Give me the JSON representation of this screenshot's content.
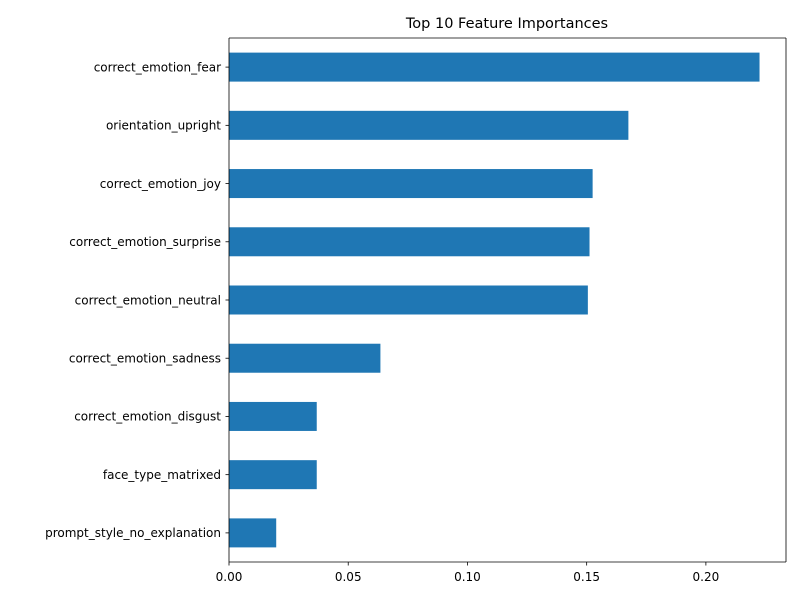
{
  "chart_data": {
    "type": "bar",
    "orientation": "horizontal",
    "title": "Top 10 Feature Importances",
    "xlabel": "",
    "ylabel": "",
    "categories": [
      "correct_emotion_fear",
      "orientation_upright",
      "correct_emotion_joy",
      "correct_emotion_surprise",
      "correct_emotion_neutral",
      "correct_emotion_sadness",
      "correct_emotion_disgust",
      "face_type_matrixed",
      "prompt_style_no_explanation"
    ],
    "values": [
      0.2225,
      0.1675,
      0.1525,
      0.1512,
      0.1505,
      0.0635,
      0.0368,
      0.0368,
      0.0198
    ],
    "xlim": [
      0,
      0.2336
    ],
    "xticks": [
      0,
      0.05,
      0.1,
      0.15,
      0.2
    ],
    "xtick_labels": [
      "0.00",
      "0.05",
      "0.10",
      "0.15",
      "0.20"
    ],
    "grid": false,
    "legend": "none",
    "bar_color": "#1f77b4"
  }
}
